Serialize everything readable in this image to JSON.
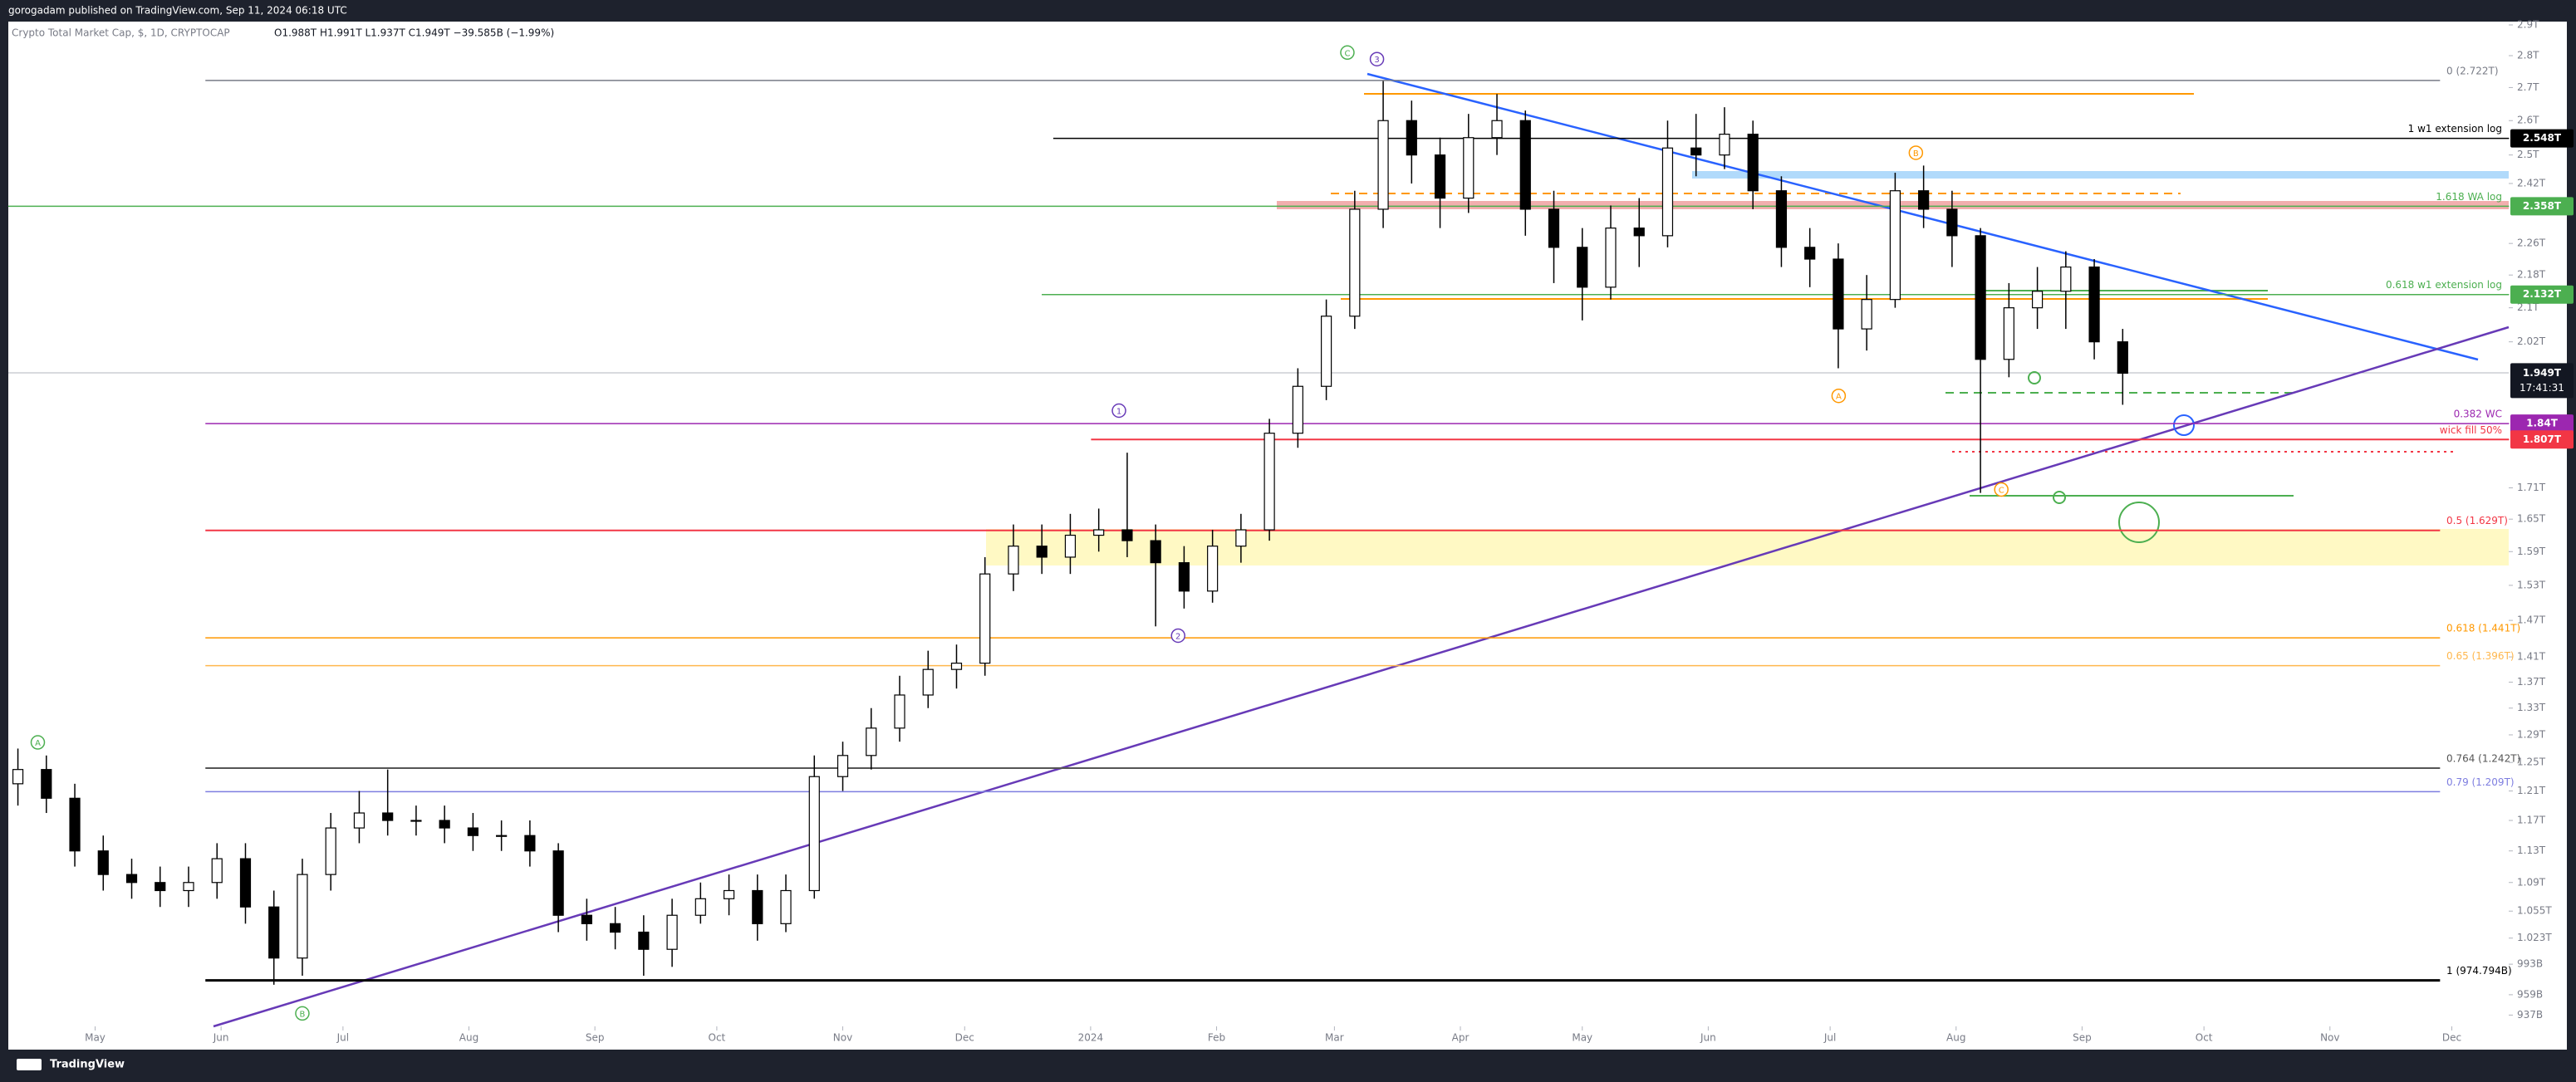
{
  "header": {
    "publisher": "gorogadam published on TradingView.com, Sep 11, 2024 06:18 UTC"
  },
  "footer": {
    "brand": "TradingView"
  },
  "chart_data": {
    "type": "candlestick",
    "title": "Crypto Total Market Cap, $, 1D, CRYPTOCAP",
    "legend_values": "O1.988T H1.991T L1.937T C1.949T −39.585B (−1.99%)",
    "log_scale": true,
    "x": [
      4,
      11,
      18,
      25,
      32,
      39,
      46,
      53,
      60,
      67,
      74,
      81,
      88,
      95,
      102,
      109,
      116,
      123,
      130,
      137,
      144,
      151,
      158,
      165,
      172,
      179,
      186,
      193,
      200,
      207,
      214,
      221,
      228,
      235,
      242,
      249,
      256,
      263,
      270,
      277,
      284,
      291,
      298,
      305,
      312,
      319,
      326,
      333,
      340,
      347,
      354,
      361,
      368,
      375,
      382,
      389,
      396,
      403,
      410,
      417,
      424,
      431,
      438,
      445,
      452,
      459,
      466,
      473,
      480,
      487,
      494,
      501,
      508,
      515,
      522
    ],
    "open": [
      1.22,
      1.24,
      1.2,
      1.13,
      1.1,
      1.09,
      1.08,
      1.09,
      1.12,
      1.06,
      1.0,
      1.1,
      1.16,
      1.18,
      1.17,
      1.17,
      1.16,
      1.15,
      1.15,
      1.13,
      1.05,
      1.04,
      1.03,
      1.01,
      1.05,
      1.07,
      1.08,
      1.04,
      1.08,
      1.23,
      1.26,
      1.3,
      1.35,
      1.39,
      1.4,
      1.55,
      1.6,
      1.58,
      1.62,
      1.63,
      1.61,
      1.57,
      1.52,
      1.6,
      1.63,
      1.82,
      1.92,
      2.08,
      2.35,
      2.6,
      2.5,
      2.38,
      2.55,
      2.6,
      2.35,
      2.25,
      2.15,
      2.3,
      2.28,
      2.52,
      2.5,
      2.56,
      2.4,
      2.25,
      2.22,
      2.05,
      2.12,
      2.4,
      2.35,
      2.28,
      1.98,
      2.1,
      2.14,
      2.2,
      2.02
    ],
    "high": [
      1.27,
      1.26,
      1.22,
      1.15,
      1.12,
      1.11,
      1.11,
      1.14,
      1.14,
      1.08,
      1.12,
      1.18,
      1.21,
      1.24,
      1.19,
      1.19,
      1.18,
      1.17,
      1.17,
      1.14,
      1.07,
      1.06,
      1.05,
      1.07,
      1.09,
      1.1,
      1.1,
      1.1,
      1.26,
      1.28,
      1.33,
      1.38,
      1.42,
      1.43,
      1.58,
      1.64,
      1.64,
      1.66,
      1.67,
      1.78,
      1.64,
      1.6,
      1.63,
      1.66,
      1.85,
      1.96,
      2.12,
      2.4,
      2.72,
      2.66,
      2.55,
      2.62,
      2.68,
      2.63,
      2.4,
      2.3,
      2.36,
      2.38,
      2.6,
      2.62,
      2.64,
      2.6,
      2.44,
      2.3,
      2.26,
      2.18,
      2.45,
      2.47,
      2.4,
      2.3,
      2.16,
      2.2,
      2.24,
      2.22,
      2.05
    ],
    "low": [
      1.19,
      1.18,
      1.11,
      1.08,
      1.07,
      1.06,
      1.06,
      1.07,
      1.04,
      0.97,
      0.98,
      1.08,
      1.14,
      1.15,
      1.15,
      1.14,
      1.13,
      1.13,
      1.11,
      1.03,
      1.02,
      1.01,
      0.98,
      0.99,
      1.04,
      1.05,
      1.02,
      1.03,
      1.07,
      1.21,
      1.24,
      1.28,
      1.33,
      1.36,
      1.38,
      1.52,
      1.55,
      1.55,
      1.59,
      1.58,
      1.46,
      1.49,
      1.5,
      1.57,
      1.61,
      1.79,
      1.89,
      2.05,
      2.3,
      2.42,
      2.3,
      2.34,
      2.5,
      2.28,
      2.16,
      2.07,
      2.12,
      2.2,
      2.25,
      2.44,
      2.46,
      2.35,
      2.2,
      2.15,
      1.96,
      2.0,
      2.1,
      2.3,
      2.2,
      1.7,
      1.94,
      2.05,
      2.05,
      1.98,
      1.88
    ],
    "close": [
      1.24,
      1.2,
      1.13,
      1.1,
      1.09,
      1.08,
      1.09,
      1.12,
      1.06,
      1.0,
      1.1,
      1.16,
      1.18,
      1.17,
      1.17,
      1.16,
      1.15,
      1.15,
      1.13,
      1.05,
      1.04,
      1.03,
      1.01,
      1.05,
      1.07,
      1.08,
      1.04,
      1.08,
      1.23,
      1.26,
      1.3,
      1.35,
      1.39,
      1.4,
      1.55,
      1.6,
      1.58,
      1.62,
      1.63,
      1.61,
      1.57,
      1.52,
      1.6,
      1.63,
      1.82,
      1.92,
      2.08,
      2.35,
      2.6,
      2.5,
      2.38,
      2.55,
      2.6,
      2.35,
      2.25,
      2.15,
      2.3,
      2.28,
      2.52,
      2.5,
      2.56,
      2.4,
      2.25,
      2.22,
      2.05,
      2.12,
      2.4,
      2.35,
      2.28,
      1.98,
      2.1,
      2.14,
      2.2,
      2.02,
      1.949
    ],
    "up_color": "#ffffff",
    "down_color": "#000000",
    "xlim": [
      0,
      617
    ],
    "ylim": [
      0.925,
      2.911
    ],
    "xticks": [
      {
        "value": 23,
        "label": "May"
      },
      {
        "value": 54,
        "label": "Jun"
      },
      {
        "value": 84,
        "label": "Jul"
      },
      {
        "value": 115,
        "label": "Aug"
      },
      {
        "value": 146,
        "label": "Sep"
      },
      {
        "value": 176,
        "label": "Oct"
      },
      {
        "value": 207,
        "label": "Nov"
      },
      {
        "value": 237,
        "label": "Dec"
      },
      {
        "value": 268,
        "label": "2024"
      },
      {
        "value": 299,
        "label": "Feb"
      },
      {
        "value": 328,
        "label": "Mar"
      },
      {
        "value": 359,
        "label": "Apr"
      },
      {
        "value": 389,
        "label": "May"
      },
      {
        "value": 420,
        "label": "Jun"
      },
      {
        "value": 450,
        "label": "Jul"
      },
      {
        "value": 481,
        "label": "Aug"
      },
      {
        "value": 512,
        "label": "Sep"
      },
      {
        "value": 542,
        "label": "Oct"
      },
      {
        "value": 573,
        "label": "Nov"
      },
      {
        "value": 603,
        "label": "Dec"
      }
    ],
    "yticks": [
      {
        "value": 2.9,
        "label": "2.9T"
      },
      {
        "value": 2.8,
        "label": "2.8T"
      },
      {
        "value": 2.7,
        "label": "2.7T"
      },
      {
        "value": 2.6,
        "label": "2.6T"
      },
      {
        "value": 2.5,
        "label": "2.5T"
      },
      {
        "value": 2.42,
        "label": "2.42T"
      },
      {
        "value": 2.26,
        "label": "2.26T"
      },
      {
        "value": 2.18,
        "label": "2.18T"
      },
      {
        "value": 2.1,
        "label": "2.1T"
      },
      {
        "value": 2.02,
        "label": "2.02T"
      },
      {
        "value": 1.71,
        "label": "1.71T"
      },
      {
        "value": 1.65,
        "label": "1.65T"
      },
      {
        "value": 1.59,
        "label": "1.59T"
      },
      {
        "value": 1.53,
        "label": "1.53T"
      },
      {
        "value": 1.47,
        "label": "1.47T"
      },
      {
        "value": 1.41,
        "label": "1.41T"
      },
      {
        "value": 1.37,
        "label": "1.37T"
      },
      {
        "value": 1.33,
        "label": "1.33T"
      },
      {
        "value": 1.29,
        "label": "1.29T"
      },
      {
        "value": 1.25,
        "label": "1.25T"
      },
      {
        "value": 1.21,
        "label": "1.21T"
      },
      {
        "value": 1.17,
        "label": "1.17T"
      },
      {
        "value": 1.13,
        "label": "1.13T"
      },
      {
        "value": 1.09,
        "label": "1.09T"
      },
      {
        "value": 1.055,
        "label": "1.055T"
      },
      {
        "value": 1.023,
        "label": "1.023T"
      },
      {
        "value": 0.993,
        "label": "993B"
      },
      {
        "value": 0.959,
        "label": "959B"
      },
      {
        "value": 0.937,
        "label": "937B"
      }
    ],
    "levels": [
      {
        "label": "0 (2.722T)",
        "value": 2.722,
        "color": "#787b86"
      },
      {
        "label": "1 w1 extension log",
        "value": 2.548,
        "color": "#000000",
        "badge": "2.548T"
      },
      {
        "label": "1.618 WA log",
        "value": 2.358,
        "color": "#4caf50",
        "badge": "2.358T"
      },
      {
        "label": "0.618 w1 extension log",
        "value": 2.132,
        "color": "#4caf50",
        "badge": "2.132T"
      },
      {
        "label": "0.382 WC",
        "value": 1.84,
        "color": "#9c27b0",
        "badge": "1.84T"
      },
      {
        "label": "wick fill 50%",
        "value": 1.807,
        "color": "#f23645",
        "badge": "1.807T"
      },
      {
        "label": "0.5 (1.629T)",
        "value": 1.629,
        "color": "#f23645"
      },
      {
        "label": "0.618 (1.441T)",
        "value": 1.441,
        "color": "#ff9800"
      },
      {
        "label": "0.65 (1.396T)",
        "value": 1.396,
        "color": "#ffb74d"
      },
      {
        "label": "0.764 (1.242T)",
        "value": 1.242,
        "color": "#555555"
      },
      {
        "label": "0.79 (1.209T)",
        "value": 1.209,
        "color": "#7e7ee0"
      },
      {
        "label": "1 (974.794B)",
        "value": 0.9748,
        "color": "#000000"
      }
    ],
    "price_badge": {
      "value": 1.949,
      "label": "1.949T",
      "countdown": "17:41:31"
    },
    "wave_labels": [
      "C",
      "3",
      "1",
      "2",
      "A",
      "B",
      "A",
      "B",
      "C"
    ]
  }
}
